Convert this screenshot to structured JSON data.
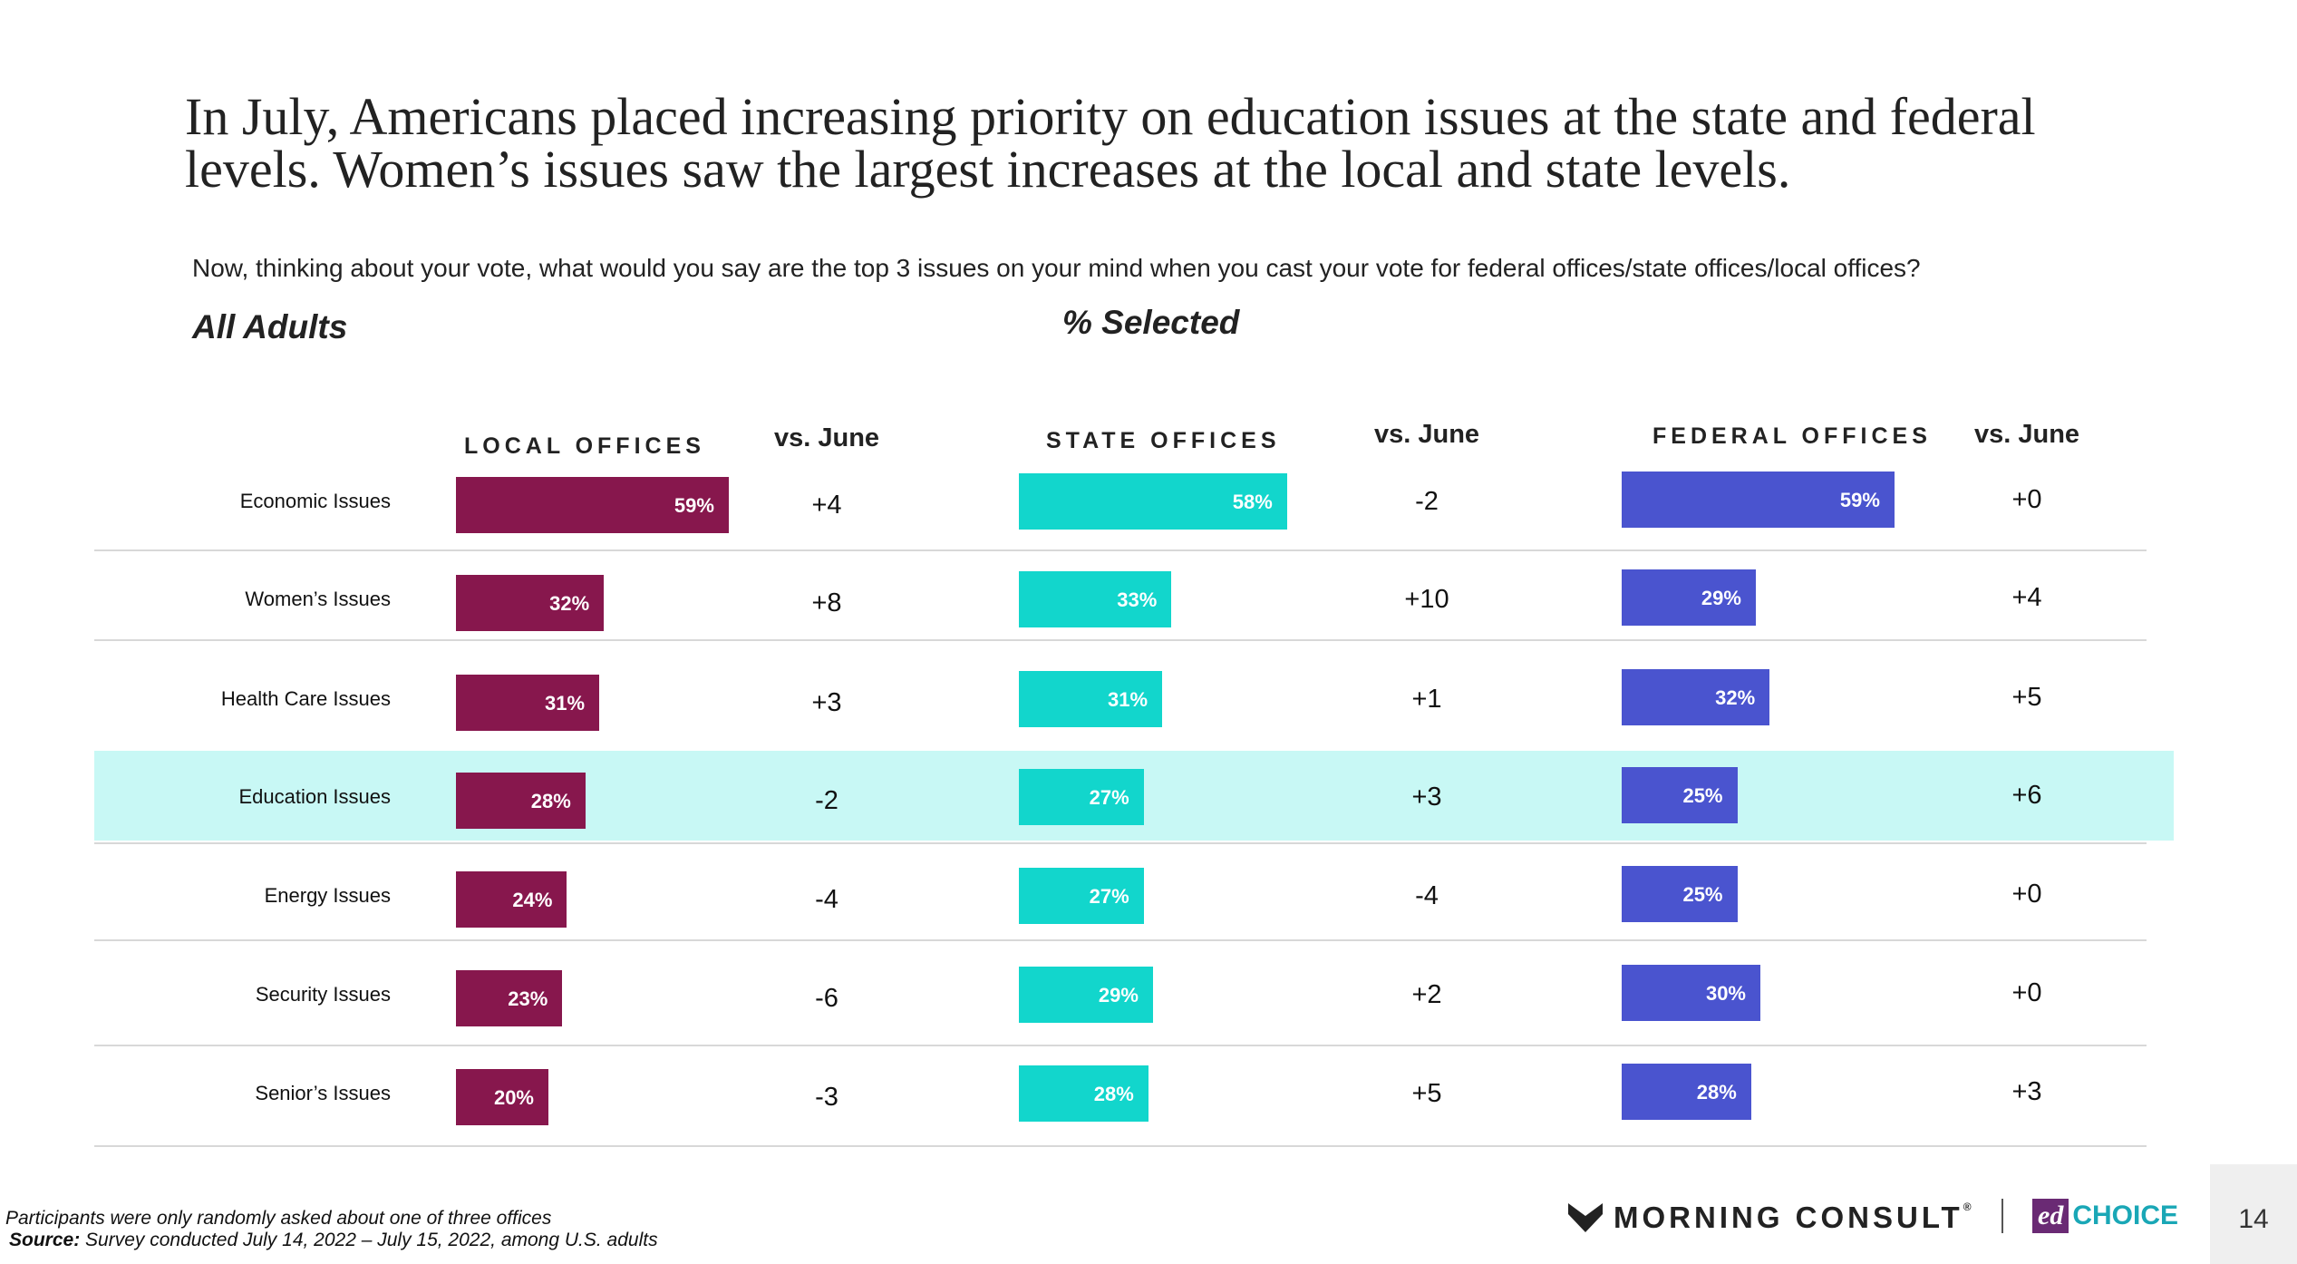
{
  "title": "In July, Americans placed increasing priority on education issues at the state and federal levels. Women’s issues saw the largest increases at the local and state levels.",
  "question": "Now, thinking about your vote, what would you say are the top 3 issues on your mind when you cast your vote for federal offices/state offices/local offices?",
  "segment": "All Adults",
  "measure": "% Selected",
  "headers": {
    "local": "LOCAL OFFICES",
    "state": "STATE OFFICES",
    "federal": "FEDERAL OFFICES",
    "vs": "vs. June"
  },
  "colors": {
    "local": "#87174d",
    "state": "#12d6cc",
    "federal": "#4a54cf",
    "highlight": "#c8f8f5"
  },
  "chart_data": {
    "type": "bar",
    "orientation": "horizontal",
    "categories": [
      "Economic Issues",
      "Women’s Issues",
      "Health Care Issues",
      "Education Issues",
      "Energy Issues",
      "Security Issues",
      "Senior’s Issues"
    ],
    "highlighted_category": "Education Issues",
    "series": [
      {
        "name": "LOCAL OFFICES",
        "values": [
          59,
          32,
          31,
          28,
          24,
          23,
          20
        ],
        "labels": [
          "59%",
          "32%",
          "31%",
          "28%",
          "24%",
          "23%",
          "20%"
        ],
        "vs_june": [
          "+4",
          "+8",
          "+3",
          "-2",
          "-4",
          "-6",
          "-3"
        ]
      },
      {
        "name": "STATE OFFICES",
        "values": [
          58,
          33,
          31,
          27,
          27,
          29,
          28
        ],
        "labels": [
          "58%",
          "33%",
          "31%",
          "27%",
          "27%",
          "29%",
          "28%"
        ],
        "vs_june": [
          "-2",
          "+10",
          "+1",
          "+3",
          "-4",
          "+2",
          "+5"
        ]
      },
      {
        "name": "FEDERAL OFFICES",
        "values": [
          59,
          29,
          32,
          25,
          25,
          30,
          28
        ],
        "labels": [
          "59%",
          "29%",
          "32%",
          "25%",
          "25%",
          "30%",
          "28%"
        ],
        "vs_june": [
          "+0",
          "+4",
          "+5",
          "+6",
          "+0",
          "+0",
          "+3"
        ]
      }
    ]
  },
  "footnote": "Participants were only randomly asked about one of three offices",
  "source_label": "Source:",
  "source_text": " Survey conducted July 14, 2022 – July 15, 2022, among U.S. adults",
  "logos": {
    "morning_consult": "MORNING CONSULT",
    "registered": "®",
    "ed": "ed",
    "choice": "CHOICE"
  },
  "page_number": "14"
}
